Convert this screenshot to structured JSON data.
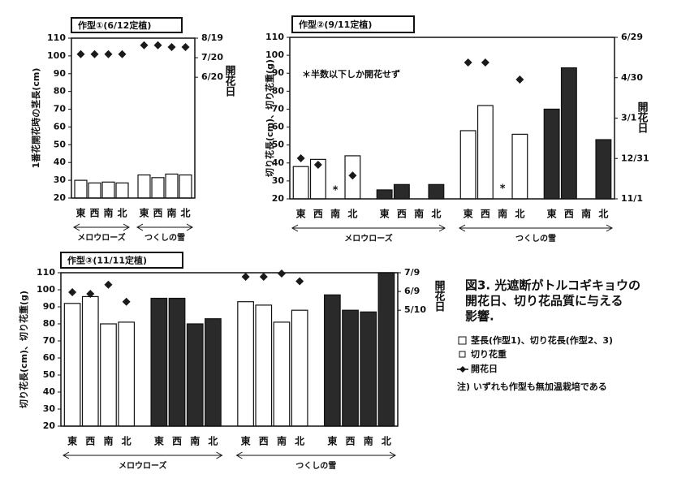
{
  "chart_data": [
    {
      "type": "bar",
      "title": "作型①(6/12定植)",
      "ylabel": "1番花開花時の茎長(cm)",
      "y2label": "開花日",
      "categories": [
        "東",
        "西",
        "南",
        "北",
        "東",
        "西",
        "南",
        "北"
      ],
      "groups": [
        "メロウローズ",
        "つくしの雪"
      ],
      "ylim": [
        20,
        110
      ],
      "yticks": [
        20,
        30,
        40,
        50,
        60,
        70,
        80,
        90,
        100,
        110
      ],
      "y2lim": [
        20,
        110
      ],
      "y2ticks": [
        {
          "value": 110,
          "label": "8/19"
        },
        {
          "value": 99,
          "label": "7/20"
        },
        {
          "value": 88,
          "label": "6/20"
        }
      ],
      "series": [
        {
          "color": "#ffffff",
          "values": [
            30,
            28.5,
            29,
            28.5,
            33,
            31.5,
            33.5,
            33
          ]
        }
      ],
      "markers": {
        "color": "#1a1a1a",
        "axis": "y2",
        "values": [
          101,
          101,
          101,
          101,
          106,
          106,
          105,
          105
        ]
      }
    },
    {
      "type": "bar",
      "title": "作型②(9/11定植)",
      "ylabel": "切り花長(cm)、切り花重(g)",
      "y2label": "開花日",
      "categories": [
        "東",
        "西",
        "南",
        "北",
        "東",
        "西",
        "南",
        "北",
        "東",
        "西",
        "南",
        "北",
        "東",
        "西",
        "南",
        "北"
      ],
      "groups": [
        "メロウローズ",
        "つくしの雪"
      ],
      "ylim": [
        20,
        110
      ],
      "yticks": [
        20,
        30,
        40,
        50,
        60,
        70,
        80,
        90,
        100,
        110
      ],
      "y2lim": [
        20,
        110
      ],
      "y2ticks": [
        {
          "value": 110,
          "label": "6/29"
        },
        {
          "value": 87.5,
          "label": "4/30"
        },
        {
          "value": 65,
          "label": "3/1"
        },
        {
          "value": 42.5,
          "label": "12/31"
        },
        {
          "value": 20,
          "label": "11/1"
        }
      ],
      "series": [
        {
          "color": "#ffffff",
          "values": [
            38,
            42,
            null,
            44,
            null,
            null,
            null,
            null,
            58,
            72,
            null,
            56,
            null,
            null,
            null,
            null
          ]
        },
        {
          "color": "#2a2a2a",
          "values": [
            null,
            null,
            null,
            null,
            25,
            28,
            null,
            28,
            null,
            null,
            null,
            null,
            70,
            93,
            null,
            53
          ]
        }
      ],
      "markers": {
        "color": "#1a1a1a",
        "axis": "y2",
        "values": [
          42.6,
          39,
          null,
          33,
          null,
          null,
          null,
          null,
          96,
          96,
          null,
          86.5,
          null,
          null,
          null,
          null
        ]
      },
      "asterisks": {
        "axis": "y2",
        "values": [
          null,
          null,
          24.5,
          null,
          null,
          null,
          null,
          null,
          null,
          null,
          25.4,
          null,
          null,
          null,
          null,
          null
        ]
      },
      "annotation": "＊半数以下しか開花せず"
    },
    {
      "type": "bar",
      "title": "作型③(11/11定植)",
      "ylabel": "切り花長(cm)、切り花重(g)",
      "y2label": "開花日",
      "categories": [
        "東",
        "西",
        "南",
        "北",
        "東",
        "西",
        "南",
        "北",
        "東",
        "西",
        "南",
        "北",
        "東",
        "西",
        "南",
        "北"
      ],
      "groups": [
        "メロウローズ",
        "つくしの雪"
      ],
      "ylim": [
        20,
        110
      ],
      "yticks": [
        20,
        30,
        40,
        50,
        60,
        70,
        80,
        90,
        100,
        110
      ],
      "y2lim": [
        20,
        110
      ],
      "y2ticks": [
        {
          "value": 110,
          "label": "7/9"
        },
        {
          "value": 99,
          "label": "6/9"
        },
        {
          "value": 88,
          "label": "5/10"
        }
      ],
      "series": [
        {
          "color": "#ffffff",
          "values": [
            92,
            96,
            80,
            81,
            null,
            null,
            null,
            null,
            93,
            91,
            81,
            88,
            null,
            null,
            null,
            null
          ]
        },
        {
          "color": "#2a2a2a",
          "values": [
            null,
            null,
            null,
            null,
            95,
            95,
            80,
            83,
            null,
            null,
            null,
            null,
            97,
            88,
            87,
            110
          ]
        }
      ],
      "markers": {
        "color": "#1a1a1a",
        "axis": "y2",
        "values": [
          98.6,
          97.6,
          103,
          93,
          null,
          null,
          null,
          null,
          107.6,
          107.6,
          109.5,
          105,
          null,
          null,
          null,
          null
        ]
      }
    }
  ],
  "caption": {
    "lines": [
      "図3. 光遮断がトルコギキョウの",
      "開花日、切り花品質に与える",
      "影響."
    ]
  },
  "legend": {
    "items": [
      "茎長(作型1)、切り花長(作型2、3)",
      "切り花重",
      "開花日"
    ]
  },
  "note": "注) いずれも作型も無加温栽培である"
}
